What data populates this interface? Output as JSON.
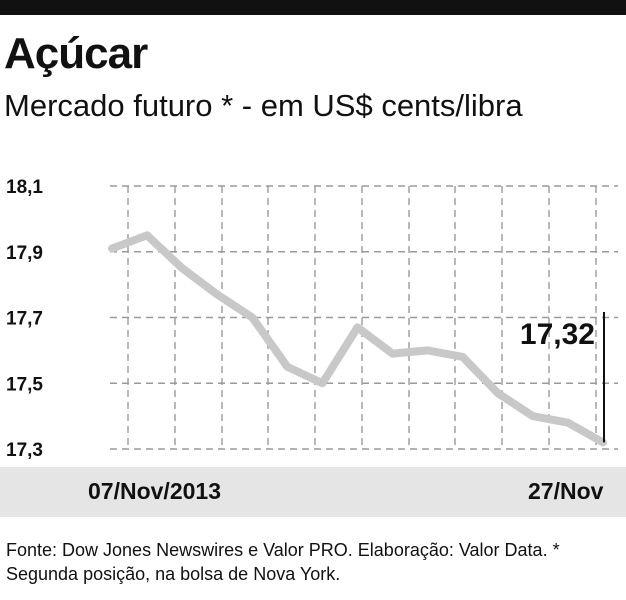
{
  "header": {
    "title": "Açúcar",
    "subtitle": "Mercado futuro * - em US$ cents/libra"
  },
  "chart_data": {
    "type": "line",
    "title": "Açúcar",
    "subtitle": "Mercado futuro * - em US$ cents/libra",
    "ylim": [
      17.3,
      18.1
    ],
    "y_ticks": [
      "18,1",
      "17,9",
      "17,7",
      "17,5",
      "17,3"
    ],
    "y_tick_values": [
      18.1,
      17.9,
      17.7,
      17.5,
      17.3
    ],
    "x_labels": [
      "07/Nov/2013",
      "27/Nov"
    ],
    "grid": true,
    "series": [
      {
        "values": [
          17.91,
          17.95,
          17.85,
          17.77,
          17.7,
          17.55,
          17.5,
          17.67,
          17.59,
          17.6,
          17.58,
          17.47,
          17.4,
          17.38,
          17.32
        ]
      }
    ],
    "annotation": {
      "label": "17,32",
      "value": 17.32
    },
    "line_color": "#c8c8c8",
    "background_band_color": "#e5e5e5"
  },
  "footer": {
    "source": "Fonte: Dow Jones Newswires e Valor PRO. Elaboração: Valor Data. * Segunda posição, na bolsa de Nova York."
  }
}
